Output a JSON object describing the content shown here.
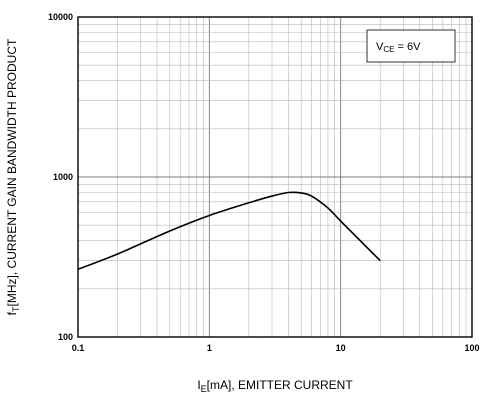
{
  "chart_data": {
    "type": "line",
    "xlabel_main": "I",
    "xlabel_sub": "E",
    "xlabel_rest": "[mA], EMITTER CURRENT",
    "ylabel_main": "f",
    "ylabel_sub": "T",
    "ylabel_rest": "[MHz], CURRENT GAIN BANDWIDTH PRODUCT",
    "x_scale": "log",
    "y_scale": "log",
    "xlim": [
      0.1,
      100
    ],
    "ylim": [
      100,
      10000
    ],
    "x_ticks": [
      "0.1",
      "1",
      "10",
      "100"
    ],
    "y_ticks": [
      "100",
      "1000",
      "10000"
    ],
    "grid": true,
    "legend_box": {
      "main": "V",
      "sub": "CE",
      "rest": " = 6V",
      "placement": "top-right"
    },
    "series": [
      {
        "x": [
          0.1,
          0.2,
          0.5,
          1.0,
          2.0,
          3.0,
          4.0,
          5.0,
          6.0,
          8.0,
          10.0,
          15.0,
          20.0
        ],
        "y": [
          265,
          330,
          460,
          575,
          690,
          760,
          800,
          795,
          760,
          640,
          530,
          380,
          300
        ]
      }
    ]
  }
}
